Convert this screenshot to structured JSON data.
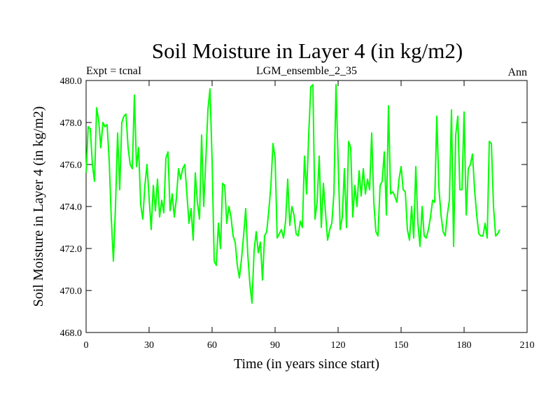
{
  "chart_data": {
    "type": "line",
    "title": "Soil Moisture in Layer 4 (in kg/m2)",
    "subtitle_left": "Expt = tcnaI",
    "subtitle_center": "LGM_ensemble_2_35",
    "subtitle_right": "Ann",
    "xlabel": "Time (in years since start)",
    "ylabel": "Soil Moisture in Layer 4 (in kg/m2)",
    "xlim": [
      0,
      210
    ],
    "ylim": [
      468.0,
      480.0
    ],
    "xticks": [
      0,
      30,
      60,
      90,
      120,
      150,
      180,
      210
    ],
    "yticks": [
      468.0,
      470.0,
      472.0,
      474.0,
      476.0,
      478.0,
      480.0
    ],
    "xtick_labels": [
      "0",
      "30",
      "60",
      "90",
      "120",
      "150",
      "180",
      "210"
    ],
    "ytick_labels": [
      "468.0",
      "470.0",
      "472.0",
      "474.0",
      "476.0",
      "478.0",
      "480.0"
    ],
    "series": [
      {
        "name": "Soil Moisture Layer 4",
        "color": "#00ff00",
        "x_start": 0,
        "x_step": 1,
        "values": [
          475.6,
          477.8,
          477.7,
          476.0,
          475.2,
          478.7,
          478.1,
          476.8,
          478.0,
          477.8,
          477.9,
          476.2,
          473.4,
          471.4,
          474.0,
          477.5,
          474.8,
          478.0,
          478.3,
          478.4,
          476.8,
          476.0,
          475.8,
          479.3,
          475.9,
          476.8,
          474.1,
          473.4,
          475.0,
          476.0,
          474.4,
          472.9,
          475.0,
          473.8,
          475.3,
          473.5,
          474.3,
          473.7,
          476.3,
          476.6,
          473.8,
          474.6,
          473.5,
          474.4,
          475.8,
          475.3,
          475.8,
          476.0,
          474.6,
          473.2,
          473.9,
          472.4,
          475.6,
          474.2,
          473.4,
          477.4,
          474.0,
          476.2,
          478.6,
          479.6,
          476.2,
          471.4,
          471.2,
          473.2,
          472.0,
          475.1,
          475.0,
          473.2,
          474.0,
          473.5,
          472.6,
          472.3,
          471.2,
          470.6,
          471.5,
          472.6,
          473.9,
          471.7,
          470.3,
          469.4,
          471.9,
          472.8,
          471.8,
          472.3,
          470.5,
          472.6,
          472.8,
          473.8,
          475.0,
          477.0,
          476.3,
          472.5,
          472.7,
          472.9,
          472.5,
          473.3,
          475.3,
          473.1,
          474.0,
          473.6,
          472.7,
          472.6,
          473.3,
          473.0,
          476.4,
          474.6,
          477.4,
          479.7,
          479.8,
          473.4,
          474.2,
          476.4,
          473.0,
          475.1,
          473.7,
          472.4,
          472.9,
          473.2,
          474.6,
          479.8,
          476.2,
          472.9,
          473.5,
          475.8,
          473.0,
          477.1,
          476.8,
          473.5,
          475.0,
          474.0,
          475.7,
          474.5,
          475.8,
          474.6,
          475.3,
          474.8,
          477.5,
          474.2,
          472.8,
          472.6,
          475.0,
          475.2,
          476.6,
          473.6,
          478.8,
          474.6,
          474.7,
          474.5,
          474.2,
          475.3,
          475.9,
          474.8,
          474.7,
          472.9,
          472.4,
          474.0,
          472.5,
          475.9,
          473.2,
          472.1,
          474.0,
          472.6,
          472.5,
          472.9,
          473.5,
          474.3,
          474.2,
          478.3,
          474.9,
          473.6,
          472.8,
          472.6,
          473.6,
          474.3,
          478.6,
          472.1,
          477.4,
          478.3,
          474.8,
          474.8,
          478.5,
          473.6,
          475.8,
          476.0,
          476.5,
          474.8,
          473.6,
          472.7,
          472.6,
          472.6,
          473.2,
          472.5,
          477.1,
          477.0,
          474.0,
          472.6,
          472.7,
          472.9
        ]
      }
    ]
  }
}
